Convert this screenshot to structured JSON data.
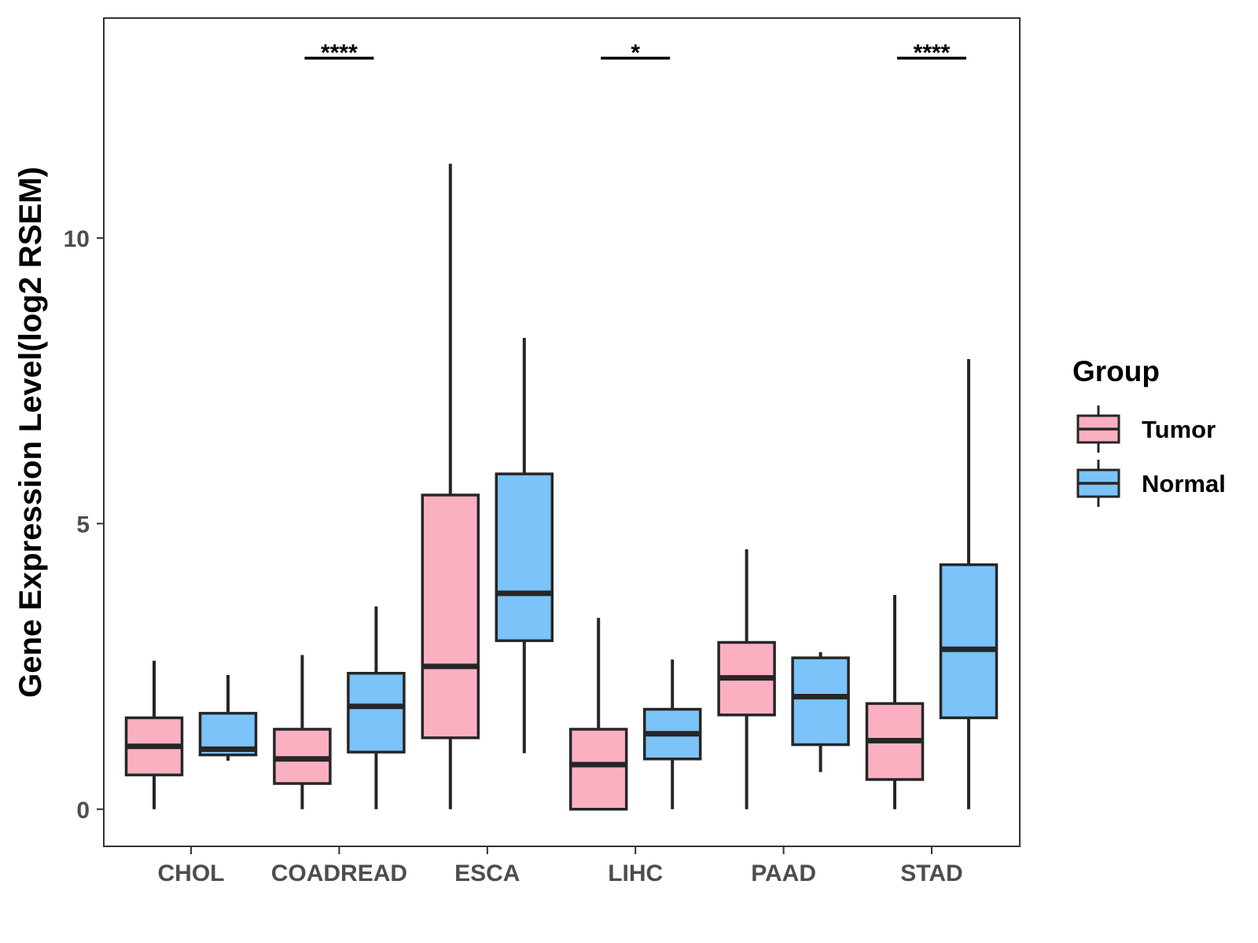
{
  "chart_data": {
    "type": "boxplot",
    "title": "",
    "xlabel": "",
    "ylabel": "Gene Expression Level(log2 RSEM)",
    "categories": [
      "CHOL",
      "COADREAD",
      "ESCA",
      "LIHC",
      "PAAD",
      "STAD"
    ],
    "y_ticks": [
      0,
      5,
      10
    ],
    "y_tick_labels": [
      "0",
      "5",
      "10"
    ],
    "ylim": [
      -0.65,
      13.85
    ],
    "grid": false,
    "legend": {
      "title": "Group",
      "position": "right",
      "entries": [
        "Tumor",
        "Normal"
      ]
    },
    "series": [
      {
        "name": "Tumor",
        "color": "#FBB0C2",
        "boxes": [
          {
            "category": "CHOL",
            "whisker_low": 0.0,
            "q1": 0.6,
            "median": 1.1,
            "q3": 1.6,
            "whisker_high": 2.6
          },
          {
            "category": "COADREAD",
            "whisker_low": 0.0,
            "q1": 0.45,
            "median": 0.88,
            "q3": 1.4,
            "whisker_high": 2.7
          },
          {
            "category": "ESCA",
            "whisker_low": 0.0,
            "q1": 1.25,
            "median": 2.5,
            "q3": 5.5,
            "whisker_high": 11.3
          },
          {
            "category": "LIHC",
            "whisker_low": 0.0,
            "q1": 0.0,
            "median": 0.78,
            "q3": 1.4,
            "whisker_high": 3.35
          },
          {
            "category": "PAAD",
            "whisker_low": 0.0,
            "q1": 1.65,
            "median": 2.3,
            "q3": 2.92,
            "whisker_high": 4.55
          },
          {
            "category": "STAD",
            "whisker_low": 0.0,
            "q1": 0.52,
            "median": 1.2,
            "q3": 1.85,
            "whisker_high": 3.75
          }
        ]
      },
      {
        "name": "Normal",
        "color": "#7BC3F8",
        "boxes": [
          {
            "category": "CHOL",
            "whisker_low": 0.85,
            "q1": 0.95,
            "median": 1.05,
            "q3": 1.68,
            "whisker_high": 2.35
          },
          {
            "category": "COADREAD",
            "whisker_low": 0.0,
            "q1": 1.0,
            "median": 1.8,
            "q3": 2.38,
            "whisker_high": 3.55
          },
          {
            "category": "ESCA",
            "whisker_low": 0.98,
            "q1": 2.95,
            "median": 3.78,
            "q3": 5.87,
            "whisker_high": 8.25
          },
          {
            "category": "LIHC",
            "whisker_low": 0.0,
            "q1": 0.88,
            "median": 1.32,
            "q3": 1.75,
            "whisker_high": 2.62
          },
          {
            "category": "PAAD",
            "whisker_low": 0.65,
            "q1": 1.13,
            "median": 1.97,
            "q3": 2.65,
            "whisker_high": 2.75
          },
          {
            "category": "STAD",
            "whisker_low": 0.0,
            "q1": 1.6,
            "median": 2.8,
            "q3": 4.28,
            "whisker_high": 7.88
          }
        ]
      }
    ],
    "annotations": [
      {
        "category": "COADREAD",
        "label": "****"
      },
      {
        "category": "LIHC",
        "label": "*"
      },
      {
        "category": "STAD",
        "label": "****"
      }
    ]
  }
}
